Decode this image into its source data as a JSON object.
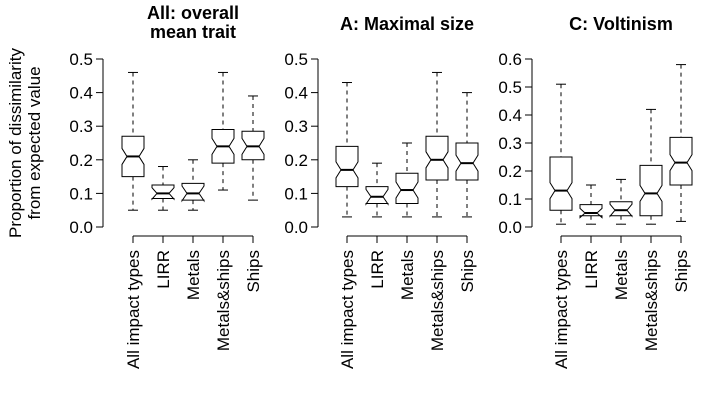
{
  "ylabel_line1": "Proportion of dissimilarity",
  "ylabel_line2": "from expected value",
  "chart_data": [
    {
      "type": "box",
      "title_line1": "All: overall",
      "title_line2": "mean trait",
      "categories": [
        "All impact types",
        "LIRR",
        "Metals",
        "Metals&ships",
        "Ships"
      ],
      "ylim": [
        0,
        0.5
      ],
      "yticks": [
        "0.0",
        "0.1",
        "0.2",
        "0.3",
        "0.4",
        "0.5"
      ],
      "boxes": [
        {
          "whisker_low": 0.05,
          "q1": 0.15,
          "median": 0.21,
          "q3": 0.27,
          "whisker_high": 0.46
        },
        {
          "whisker_low": 0.05,
          "q1": 0.085,
          "median": 0.1,
          "q3": 0.125,
          "whisker_high": 0.18
        },
        {
          "whisker_low": 0.05,
          "q1": 0.08,
          "median": 0.1,
          "q3": 0.13,
          "whisker_high": 0.2
        },
        {
          "whisker_low": 0.11,
          "q1": 0.19,
          "median": 0.24,
          "q3": 0.29,
          "whisker_high": 0.46
        },
        {
          "whisker_low": 0.08,
          "q1": 0.2,
          "median": 0.24,
          "q3": 0.285,
          "whisker_high": 0.39
        }
      ]
    },
    {
      "type": "box",
      "title_line1": "A: Maximal size",
      "title_line2": "",
      "categories": [
        "All impact types",
        "LIRR",
        "Metals",
        "Metals&ships",
        "Ships"
      ],
      "ylim": [
        0,
        0.5
      ],
      "yticks": [
        "0.0",
        "0.1",
        "0.2",
        "0.3",
        "0.4",
        "0.5"
      ],
      "boxes": [
        {
          "whisker_low": 0.03,
          "q1": 0.12,
          "median": 0.17,
          "q3": 0.24,
          "whisker_high": 0.43
        },
        {
          "whisker_low": 0.03,
          "q1": 0.07,
          "median": 0.09,
          "q3": 0.12,
          "whisker_high": 0.19
        },
        {
          "whisker_low": 0.03,
          "q1": 0.07,
          "median": 0.11,
          "q3": 0.16,
          "whisker_high": 0.25
        },
        {
          "whisker_low": 0.03,
          "q1": 0.14,
          "median": 0.2,
          "q3": 0.27,
          "whisker_high": 0.46
        },
        {
          "whisker_low": 0.03,
          "q1": 0.14,
          "median": 0.19,
          "q3": 0.25,
          "whisker_high": 0.4
        }
      ]
    },
    {
      "type": "box",
      "title_line1": "C: Voltinism",
      "title_line2": "",
      "categories": [
        "All impact types",
        "LIRR",
        "Metals",
        "Metals&ships",
        "Ships"
      ],
      "ylim": [
        0,
        0.6
      ],
      "yticks": [
        "0.0",
        "0.1",
        "0.2",
        "0.3",
        "0.4",
        "0.5",
        "0.6"
      ],
      "boxes": [
        {
          "whisker_low": 0.01,
          "q1": 0.06,
          "median": 0.13,
          "q3": 0.25,
          "whisker_high": 0.51
        },
        {
          "whisker_low": 0.01,
          "q1": 0.04,
          "median": 0.05,
          "q3": 0.08,
          "whisker_high": 0.15
        },
        {
          "whisker_low": 0.01,
          "q1": 0.04,
          "median": 0.06,
          "q3": 0.09,
          "whisker_high": 0.17
        },
        {
          "whisker_low": 0.01,
          "q1": 0.04,
          "median": 0.12,
          "q3": 0.22,
          "whisker_high": 0.42
        },
        {
          "whisker_low": 0.02,
          "q1": 0.15,
          "median": 0.23,
          "q3": 0.32,
          "whisker_high": 0.58
        }
      ]
    }
  ]
}
